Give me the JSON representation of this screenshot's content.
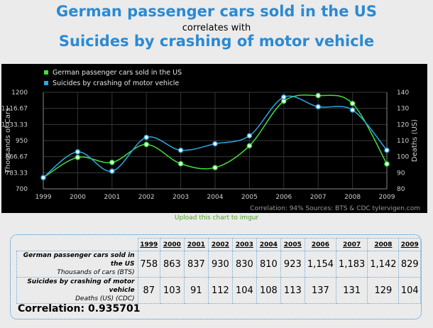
{
  "titles": {
    "line1": "German passenger cars sold in the US",
    "line2": "correlates with",
    "line3": "Suicides by crashing of motor vehicle"
  },
  "chart_data": {
    "type": "line",
    "x": [
      1999,
      2000,
      2001,
      2002,
      2003,
      2004,
      2005,
      2006,
      2007,
      2008,
      2009
    ],
    "series": [
      {
        "name": "German passenger cars sold in the US",
        "axis": "left",
        "color": "#3ee03e",
        "values": [
          758,
          863,
          837,
          930,
          830,
          810,
          923,
          1154,
          1183,
          1142,
          829
        ]
      },
      {
        "name": "Suicides by crashing of motor vehicle",
        "axis": "right",
        "color": "#2ea6e0",
        "values": [
          87,
          103,
          91,
          112,
          104,
          108,
          113,
          137,
          131,
          129,
          104
        ]
      }
    ],
    "left_axis": {
      "label": "Thousands of Cars",
      "ylim": [
        700,
        1200
      ],
      "ticks": [
        "1200",
        "1116.67",
        "1033.33",
        "950",
        "866.67",
        "783.33",
        "700"
      ]
    },
    "right_axis": {
      "label": "Deaths (US)",
      "ylim": [
        80,
        140
      ],
      "ticks": [
        "140",
        "130",
        "120",
        "110",
        "100",
        "90",
        "80"
      ]
    },
    "x_ticks": [
      "1999",
      "2000",
      "2001",
      "2002",
      "2003",
      "2004",
      "2005",
      "2006",
      "2007",
      "2008",
      "2009"
    ],
    "grid": true,
    "legend_position": "top-left",
    "footer": "Correlation: 94%     Sources: BTS & CDC     tylervigen.com"
  },
  "upload_link": "Upload this chart to imgur",
  "table": {
    "years": [
      "1999",
      "2000",
      "2001",
      "2002",
      "2003",
      "2004",
      "2005",
      "2006",
      "2007",
      "2008",
      "2009"
    ],
    "rows": [
      {
        "label_line1": "German passenger cars sold in the US",
        "label_line2": "Thousands of cars (BTS)",
        "values": [
          "758",
          "863",
          "837",
          "930",
          "830",
          "810",
          "923",
          "1,154",
          "1,183",
          "1,142",
          "829"
        ]
      },
      {
        "label_line1": "Suicides by crashing of motor vehicle",
        "label_line2": "Deaths (US) (CDC)",
        "values": [
          "87",
          "103",
          "91",
          "112",
          "104",
          "108",
          "113",
          "137",
          "131",
          "129",
          "104"
        ]
      }
    ]
  },
  "correlation": "Correlation: 0.935701"
}
